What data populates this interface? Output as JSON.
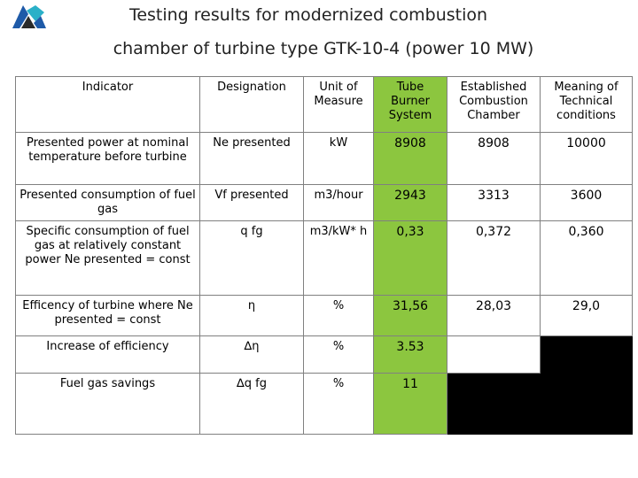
{
  "title": {
    "line1": "Testing results for modernized combustion",
    "line2": "chamber of turbine type GTK-10-4 (power 10 MW)"
  },
  "table": {
    "headers": [
      "Indicator",
      "Designation",
      "Unit of Measure",
      "Tube Burner System",
      "Established Combustion Chamber",
      "Meaning of Technical conditions"
    ],
    "rows": [
      {
        "indicator": "Presented power at nominal temperature before turbine",
        "designation": "Ne presented",
        "unit": "kW",
        "tube": "8908",
        "established": "8908",
        "technical": "10000"
      },
      {
        "indicator": "Presented consumption of fuel gas",
        "designation": "Vf presented",
        "unit": "m3/hour",
        "tube": "2943",
        "established": "3313",
        "technical": "3600"
      },
      {
        "indicator": "Specific consumption of fuel gas at relatively constant power Ne presented = const",
        "designation": "q fg",
        "unit": "m3/kW* h",
        "tube": "0,33",
        "established": "0,372",
        "technical": "0,360"
      },
      {
        "indicator": "Efficency of turbine where Ne presented = const",
        "designation": "η",
        "unit": "%",
        "tube": "31,56",
        "established": "28,03",
        "technical": "29,0"
      },
      {
        "indicator": "Increase of efficiency",
        "designation": "∆η",
        "unit": "%",
        "tube": "3.53",
        "established": "",
        "technical": ""
      },
      {
        "indicator": "Fuel gas savings",
        "designation": "∆q fg",
        "unit": "%",
        "tube": "11",
        "established": "",
        "technical": ""
      }
    ]
  },
  "colors": {
    "highlight_green": "#8cc63f",
    "logo_blue": "#1e5aa8",
    "logo_cyan": "#2ab0c8",
    "logo_dark": "#2a2a2a"
  },
  "icons": {
    "logo": "company-logo-icon"
  }
}
